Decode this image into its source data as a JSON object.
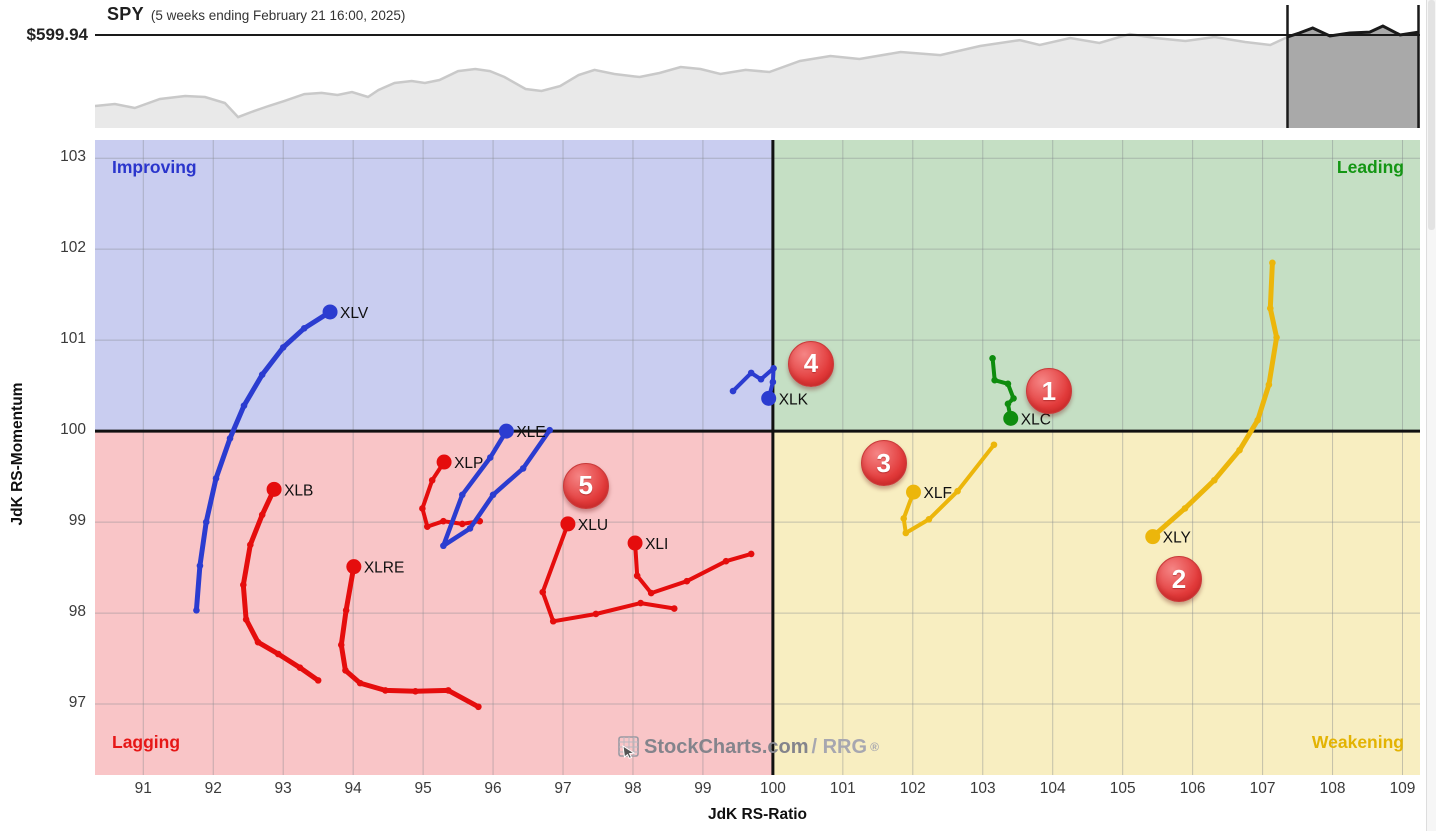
{
  "chart_data": [
    {
      "type": "area",
      "symbol": "SPY",
      "subtitle": "(5 weeks ending February 21 16:00, 2025)",
      "price_label": "$599.94",
      "price_line_frac_pct": 24.4,
      "highlight_start_pct": 90.0,
      "colors": {
        "area": "#e9e9e9",
        "line": "#c9c9c9",
        "highlight_area": "#a9a9a9",
        "highlight_line": "#1a1a1a",
        "axis": "#1a1a1a"
      },
      "shape_pct": [
        [
          0,
          82.1
        ],
        [
          1.5,
          80.5
        ],
        [
          3,
          83.7
        ],
        [
          4.9,
          76.4
        ],
        [
          6.8,
          74
        ],
        [
          8.3,
          74.8
        ],
        [
          9.8,
          79.7
        ],
        [
          10.8,
          91.1
        ],
        [
          11.8,
          87
        ],
        [
          13.1,
          82.1
        ],
        [
          14.3,
          78
        ],
        [
          15.8,
          72.4
        ],
        [
          17.1,
          71.5
        ],
        [
          18.3,
          73.2
        ],
        [
          19.4,
          70.7
        ],
        [
          20.6,
          74.8
        ],
        [
          21.4,
          69.1
        ],
        [
          22.6,
          63.4
        ],
        [
          23.9,
          61.8
        ],
        [
          24.9,
          63.4
        ],
        [
          26,
          61
        ],
        [
          27.4,
          53.7
        ],
        [
          28.7,
          52
        ],
        [
          29.8,
          53.7
        ],
        [
          30.9,
          58.5
        ],
        [
          32.5,
          68.3
        ],
        [
          33.7,
          69.9
        ],
        [
          35.1,
          65.9
        ],
        [
          36.5,
          56.9
        ],
        [
          37.7,
          52.8
        ],
        [
          39.2,
          56.1
        ],
        [
          41.1,
          58.5
        ],
        [
          42.6,
          55.3
        ],
        [
          44.2,
          50.4
        ],
        [
          45.7,
          52
        ],
        [
          47.2,
          56.1
        ],
        [
          49.1,
          52.8
        ],
        [
          50.9,
          54.5
        ],
        [
          53.2,
          45.5
        ],
        [
          55.5,
          41.5
        ],
        [
          57.7,
          43.9
        ],
        [
          60.8,
          38.2
        ],
        [
          63.8,
          40.7
        ],
        [
          66.8,
          33.3
        ],
        [
          69.8,
          28.5
        ],
        [
          71.3,
          32.5
        ],
        [
          73.6,
          26.8
        ],
        [
          75.8,
          30.9
        ],
        [
          78.1,
          23.6
        ],
        [
          80,
          26.8
        ],
        [
          82.3,
          29.3
        ],
        [
          84.5,
          26
        ],
        [
          86.8,
          30.1
        ],
        [
          88.7,
          32.5
        ],
        [
          90,
          26
        ],
        [
          90.9,
          22.8
        ],
        [
          91.9,
          18.7
        ],
        [
          93.2,
          25.2
        ],
        [
          94.7,
          22.8
        ],
        [
          96.2,
          22
        ],
        [
          97.2,
          17.1
        ],
        [
          98.5,
          24.4
        ],
        [
          99.9,
          22
        ]
      ]
    },
    {
      "type": "scatter",
      "xlabel": "JdK RS-Ratio",
      "ylabel": "JdK RS-Momentum",
      "xlim": [
        90.31,
        109.25
      ],
      "ylim": [
        96.22,
        103.2
      ],
      "x_ticks": [
        91,
        92,
        93,
        94,
        95,
        96,
        97,
        98,
        99,
        100,
        101,
        102,
        103,
        104,
        105,
        106,
        107,
        108,
        109
      ],
      "y_ticks": [
        97,
        98,
        99,
        100,
        101,
        102,
        103
      ],
      "center": [
        100,
        100
      ],
      "grid": true,
      "grid_color": "rgba(130,135,140,0.45)",
      "center_line_color": "#111111",
      "label_color": "#101010",
      "quadrants": [
        {
          "name": "improving",
          "label": "Improving",
          "bg": "#c9cdf0",
          "text_color": "#2a35cc",
          "position": "top-left"
        },
        {
          "name": "leading",
          "label": "Leading",
          "bg": "#c5dfc4",
          "text_color": "#149614",
          "position": "top-right"
        },
        {
          "name": "lagging",
          "label": "Lagging",
          "bg": "#f9c5c7",
          "text_color": "#e61717",
          "position": "bottom-left"
        },
        {
          "name": "weakening",
          "label": "Weakening",
          "bg": "#f8eec1",
          "text_color": "#e3b303",
          "position": "bottom-right"
        }
      ],
      "series": [
        {
          "name": "XLV",
          "color": "#2b3cd0",
          "line_width": 5,
          "points": [
            [
              91.76,
              98.03
            ],
            [
              91.81,
              98.52
            ],
            [
              91.9,
              99.0
            ],
            [
              92.04,
              99.48
            ],
            [
              92.24,
              99.92
            ],
            [
              92.44,
              100.28
            ],
            [
              92.7,
              100.62
            ],
            [
              93.0,
              100.92
            ],
            [
              93.3,
              101.13
            ],
            [
              93.67,
              101.31
            ]
          ]
        },
        {
          "name": "XLB",
          "color": "#e50d0d",
          "line_width": 5,
          "points": [
            [
              93.5,
              97.26
            ],
            [
              93.24,
              97.4
            ],
            [
              92.93,
              97.55
            ],
            [
              92.64,
              97.68
            ],
            [
              92.47,
              97.93
            ],
            [
              92.43,
              98.31
            ],
            [
              92.53,
              98.75
            ],
            [
              92.7,
              99.08
            ],
            [
              92.87,
              99.36
            ]
          ]
        },
        {
          "name": "XLRE",
          "color": "#e50d0d",
          "line_width": 5,
          "points": [
            [
              95.79,
              96.97
            ],
            [
              95.36,
              97.15
            ],
            [
              94.89,
              97.14
            ],
            [
              94.46,
              97.15
            ],
            [
              94.1,
              97.23
            ],
            [
              93.89,
              97.37
            ],
            [
              93.83,
              97.65
            ],
            [
              93.9,
              98.03
            ],
            [
              94.01,
              98.51
            ]
          ]
        },
        {
          "name": "XLP",
          "color": "#e50d0d",
          "line_width": 4,
          "points": [
            [
              95.81,
              99.01
            ],
            [
              95.56,
              98.98
            ],
            [
              95.29,
              99.01
            ],
            [
              95.06,
              98.95
            ],
            [
              94.99,
              99.15
            ],
            [
              95.13,
              99.46
            ],
            [
              95.3,
              99.66
            ]
          ]
        },
        {
          "name": "XLE",
          "color": "#2b3cd0",
          "line_width": 4.5,
          "points": [
            [
              96.81,
              100.01
            ],
            [
              96.43,
              99.59
            ],
            [
              96.0,
              99.3
            ],
            [
              95.67,
              98.93
            ],
            [
              95.29,
              98.74
            ],
            [
              95.56,
              99.3
            ],
            [
              95.96,
              99.71
            ],
            [
              96.19,
              100.0
            ]
          ]
        },
        {
          "name": "XLU",
          "color": "#e50d0d",
          "line_width": 4,
          "points": [
            [
              98.59,
              98.05
            ],
            [
              98.11,
              98.11
            ],
            [
              97.47,
              97.99
            ],
            [
              96.86,
              97.91
            ],
            [
              96.71,
              98.23
            ],
            [
              97.07,
              98.98
            ]
          ]
        },
        {
          "name": "XLI",
          "color": "#e50d0d",
          "line_width": 4,
          "points": [
            [
              99.69,
              98.65
            ],
            [
              99.33,
              98.57
            ],
            [
              98.77,
              98.35
            ],
            [
              98.26,
              98.22
            ],
            [
              98.06,
              98.41
            ],
            [
              98.03,
              98.77
            ]
          ]
        },
        {
          "name": "XLK",
          "color": "#2b3cd0",
          "line_width": 4,
          "points": [
            [
              99.43,
              100.44
            ],
            [
              99.69,
              100.64
            ],
            [
              99.83,
              100.57
            ],
            [
              100.01,
              100.69
            ],
            [
              100.0,
              100.54
            ],
            [
              99.94,
              100.36
            ]
          ]
        },
        {
          "name": "XLC",
          "color": "#0e8c0e",
          "line_width": 4,
          "points": [
            [
              103.14,
              100.8
            ],
            [
              103.17,
              100.56
            ],
            [
              103.36,
              100.52
            ],
            [
              103.44,
              100.36
            ],
            [
              103.36,
              100.3
            ],
            [
              103.4,
              100.14
            ]
          ]
        },
        {
          "name": "XLF",
          "color": "#ecb60b",
          "line_width": 4,
          "points": [
            [
              103.16,
              99.85
            ],
            [
              102.64,
              99.34
            ],
            [
              102.23,
              99.03
            ],
            [
              101.9,
              98.88
            ],
            [
              101.87,
              99.04
            ],
            [
              102.01,
              99.33
            ]
          ]
        },
        {
          "name": "XLY",
          "color": "#ecb60b",
          "line_width": 5,
          "points": [
            [
              107.14,
              101.85
            ],
            [
              107.11,
              101.35
            ],
            [
              107.2,
              101.03
            ],
            [
              107.09,
              100.51
            ],
            [
              106.93,
              100.12
            ],
            [
              106.67,
              99.79
            ],
            [
              106.31,
              99.46
            ],
            [
              105.89,
              99.15
            ],
            [
              105.43,
              98.84
            ]
          ]
        }
      ],
      "badges": [
        {
          "label": "1",
          "at": [
            103.93,
            100.45
          ]
        },
        {
          "label": "2",
          "at": [
            105.79,
            98.38
          ]
        },
        {
          "label": "3",
          "at": [
            101.57,
            99.66
          ]
        },
        {
          "label": "4",
          "at": [
            100.53,
            100.75
          ]
        },
        {
          "label": "5",
          "at": [
            97.31,
            99.41
          ]
        }
      ],
      "watermark": {
        "primary": "StockCharts.com",
        "secondary": " / RRG",
        "reg": "®"
      }
    }
  ]
}
